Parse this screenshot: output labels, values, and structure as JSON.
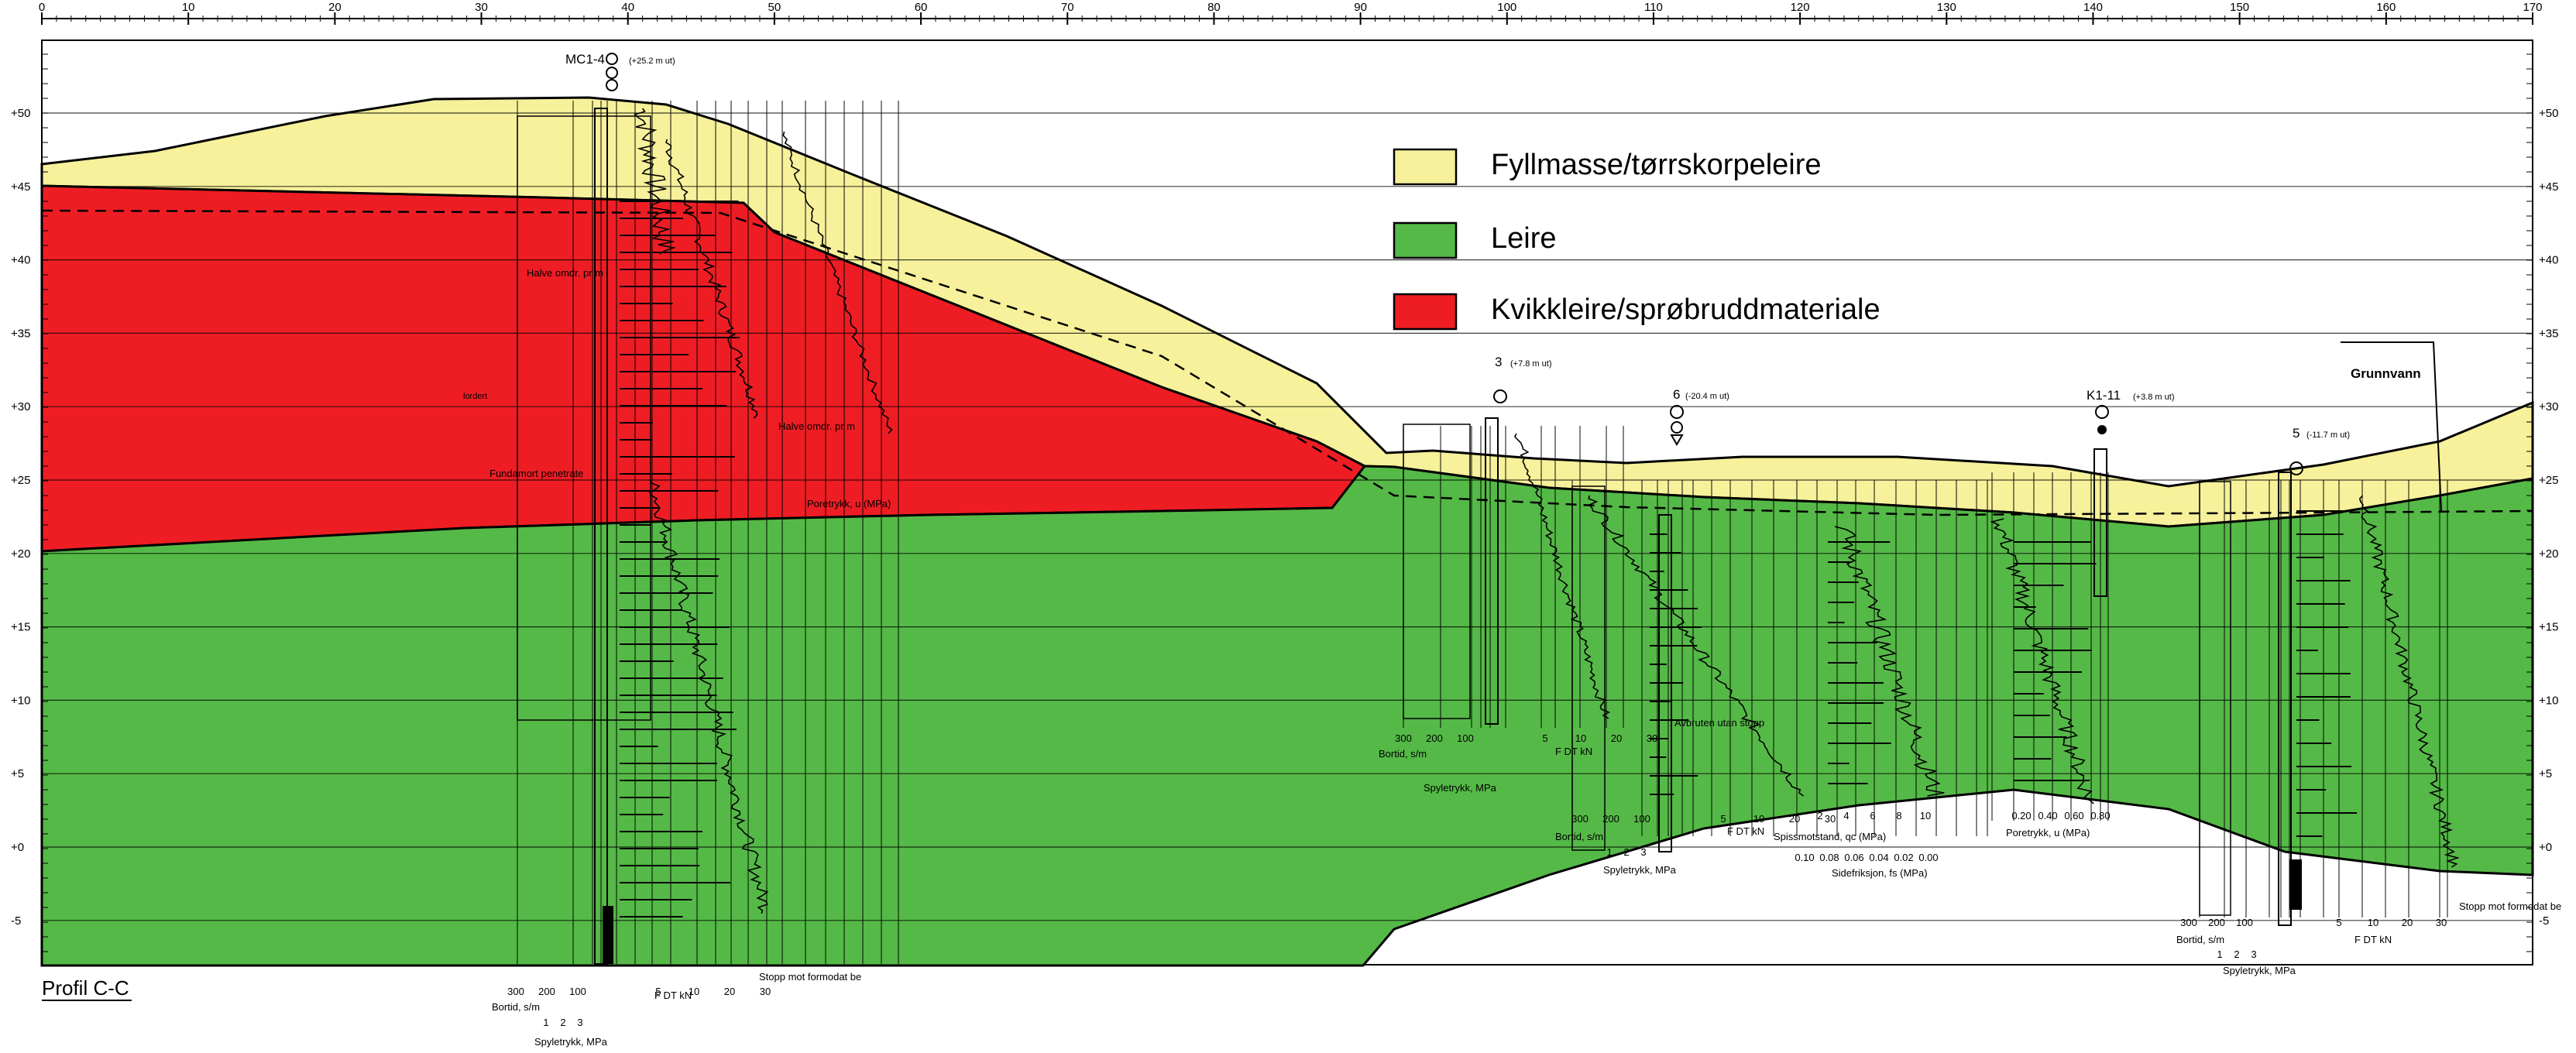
{
  "profile_title": "Profil C-C",
  "legend": [
    {
      "label": "Fyllmasse/tørrskorpeleire",
      "color": "#f6f19a"
    },
    {
      "label": "Leire",
      "color": "#55b947"
    },
    {
      "label": "Kvikkleire/sprøbruddmateriale",
      "color": "#ee1d24"
    }
  ],
  "x_ticks": [
    "0",
    "10",
    "20",
    "30",
    "40",
    "50",
    "60",
    "70",
    "80",
    "90",
    "100",
    "110",
    "120",
    "130",
    "140",
    "150",
    "160",
    "170"
  ],
  "y_ticks": [
    "+50",
    "+45",
    "+40",
    "+35",
    "+30",
    "+25",
    "+20",
    "+15",
    "+10",
    "+5",
    "+0",
    "-5"
  ],
  "boreholes": [
    {
      "label": "MC1-4",
      "offset": "(+25.2 m ut)"
    },
    {
      "label": "3",
      "offset": "(+7.8 m ut)"
    },
    {
      "label": "6",
      "offset": "(-20.4 m ut)"
    },
    {
      "label": "K1-11",
      "offset": "(+3.8 m ut)"
    },
    {
      "label": "5",
      "offset": "(-11.7 m ut)"
    }
  ],
  "groundwater_label": "Grunnvann",
  "annotations": {
    "stop_1": "Stopp mot formodat be",
    "stop_2": "Stopp mot formodat be",
    "avbrutt": "Avbruten utan stopp",
    "bortid": "Bortid, s/m",
    "spyletrykk": "Spyletrykk, MPa",
    "spissmotstand": "Spissmotstand, qc (MPa)",
    "sidefriksjon": "Sidefriksjon, fs (MPa)",
    "poretrykk": "Poretrykk, u (MPa)",
    "fdt": "F DT kN",
    "halve": "Halve omdr. pr m",
    "lordert": "lordert",
    "fundamort": "Fundamort penetrate"
  },
  "scale_labels": {
    "b1": [
      "300",
      "200",
      "100"
    ],
    "b2": [
      "1",
      "2",
      "3"
    ],
    "b3": [
      "5",
      "10",
      "20",
      "30"
    ],
    "u": [
      "0.20",
      "0.40",
      "0.60",
      "0.80"
    ],
    "qc": [
      "2",
      "4",
      "6",
      "8",
      "10"
    ],
    "fs": [
      "0.10",
      "0.08",
      "0.06",
      "0.04",
      "0.02",
      "0.00"
    ]
  }
}
